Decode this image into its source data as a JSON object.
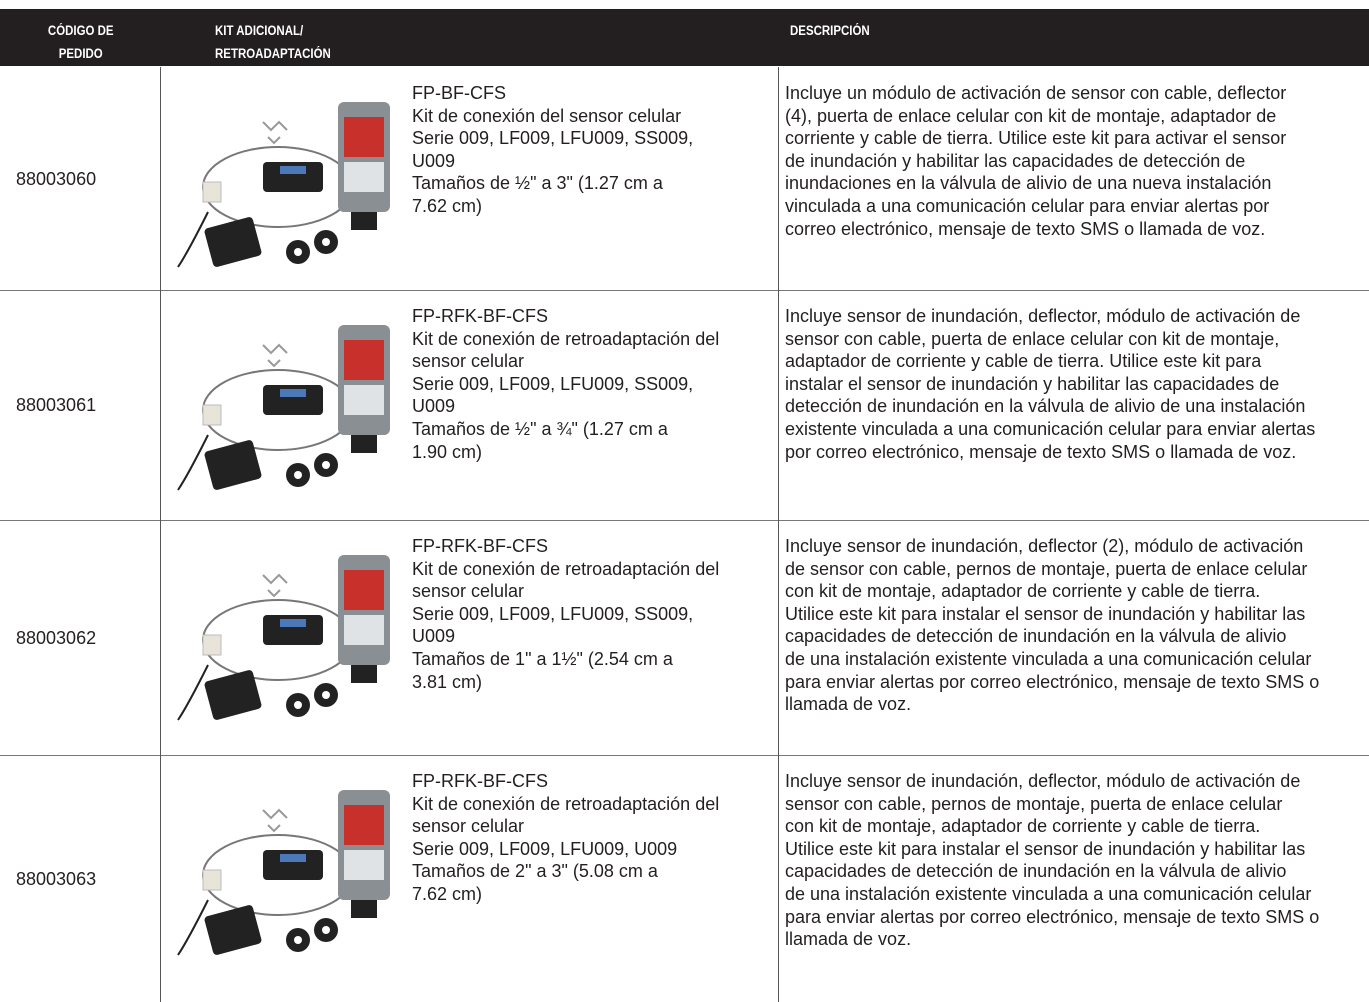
{
  "header": {
    "code": [
      "CÓDIGO DE",
      "PEDIDO"
    ],
    "kit": [
      "KIT ADICIONAL/",
      "RETROADAPTACIÓN"
    ],
    "description": [
      "DESCRIPCIÓN"
    ]
  },
  "rows": [
    {
      "code": "88003060",
      "kit": [
        "FP-BF-CFS",
        "Kit de conexión del sensor celular",
        "Serie 009, LF009, LFU009, SS009,",
        "U009",
        "Tamaños de ½\" a 3\" (1.27 cm a",
        "7.62 cm)"
      ],
      "description": [
        "Incluye un módulo de activación de sensor con cable, deflector",
        "(4), puerta de enlace celular con kit de montaje, adaptador de",
        "corriente y cable de tierra. Utilice este kit para activar el sensor",
        "de inundación y habilitar las capacidades de detección de",
        "inundaciones en la válvula de alivio de una nueva instalación",
        "vinculada a una comunicación celular para enviar alertas por",
        "correo electrónico, mensaje de texto SMS o llamada de voz."
      ]
    },
    {
      "code": "88003061",
      "kit": [
        "FP-RFK-BF-CFS",
        "Kit de conexión de retroadaptación del",
        "sensor celular",
        "Serie 009, LF009, LFU009, SS009,",
        "U009",
        "Tamaños de ½\" a ¾\" (1.27 cm a",
        "1.90 cm)"
      ],
      "description": [
        "Incluye sensor de inundación, deflector, módulo de activación de",
        "sensor con cable, puerta de enlace celular con kit de montaje,",
        "adaptador de corriente y cable de tierra. Utilice este kit para",
        "instalar el sensor de inundación y habilitar las capacidades de",
        "detección de inundación en la válvula de alivio de una instalación",
        "existente vinculada a una comunicación celular para enviar alertas",
        "por correo electrónico, mensaje de texto SMS o llamada de voz."
      ]
    },
    {
      "code": "88003062",
      "kit": [
        "FP-RFK-BF-CFS",
        "Kit de conexión de retroadaptación del",
        "sensor celular",
        "Serie 009, LF009, LFU009, SS009,",
        "U009",
        "Tamaños de 1\" a 1½\" (2.54 cm a",
        "3.81 cm)"
      ],
      "description": [
        "Incluye sensor de inundación, deflector (2), módulo de activación",
        "de sensor con cable, pernos de montaje, puerta de enlace celular",
        "con kit de montaje, adaptador de corriente y cable de tierra.",
        "Utilice este kit para instalar el sensor de inundación y habilitar las",
        "capacidades de detección de inundación en la válvula de alivio",
        "de una instalación existente vinculada a una comunicación celular",
        "para enviar alertas por correo electrónico, mensaje de texto SMS o",
        "llamada de voz."
      ]
    },
    {
      "code": "88003063",
      "kit": [
        "FP-RFK-BF-CFS",
        "Kit de conexión de retroadaptación del",
        "sensor celular",
        "Serie 009, LF009, LFU009, U009",
        "Tamaños de 2\" a 3\" (5.08 cm a",
        "7.62 cm)"
      ],
      "description": [
        "Incluye sensor de inundación, deflector, módulo de activación de",
        "sensor con cable, pernos de montaje, puerta de enlace celular",
        "con kit de montaje, adaptador de corriente y cable de tierra.",
        "Utilice este kit para instalar el sensor de inundación y habilitar las",
        "capacidades de detección de inundación en la válvula de alivio",
        "de una instalación existente vinculada a una comunicación celular",
        "para enviar alertas por correo electrónico, mensaje de texto SMS o",
        "llamada de voz."
      ]
    }
  ]
}
